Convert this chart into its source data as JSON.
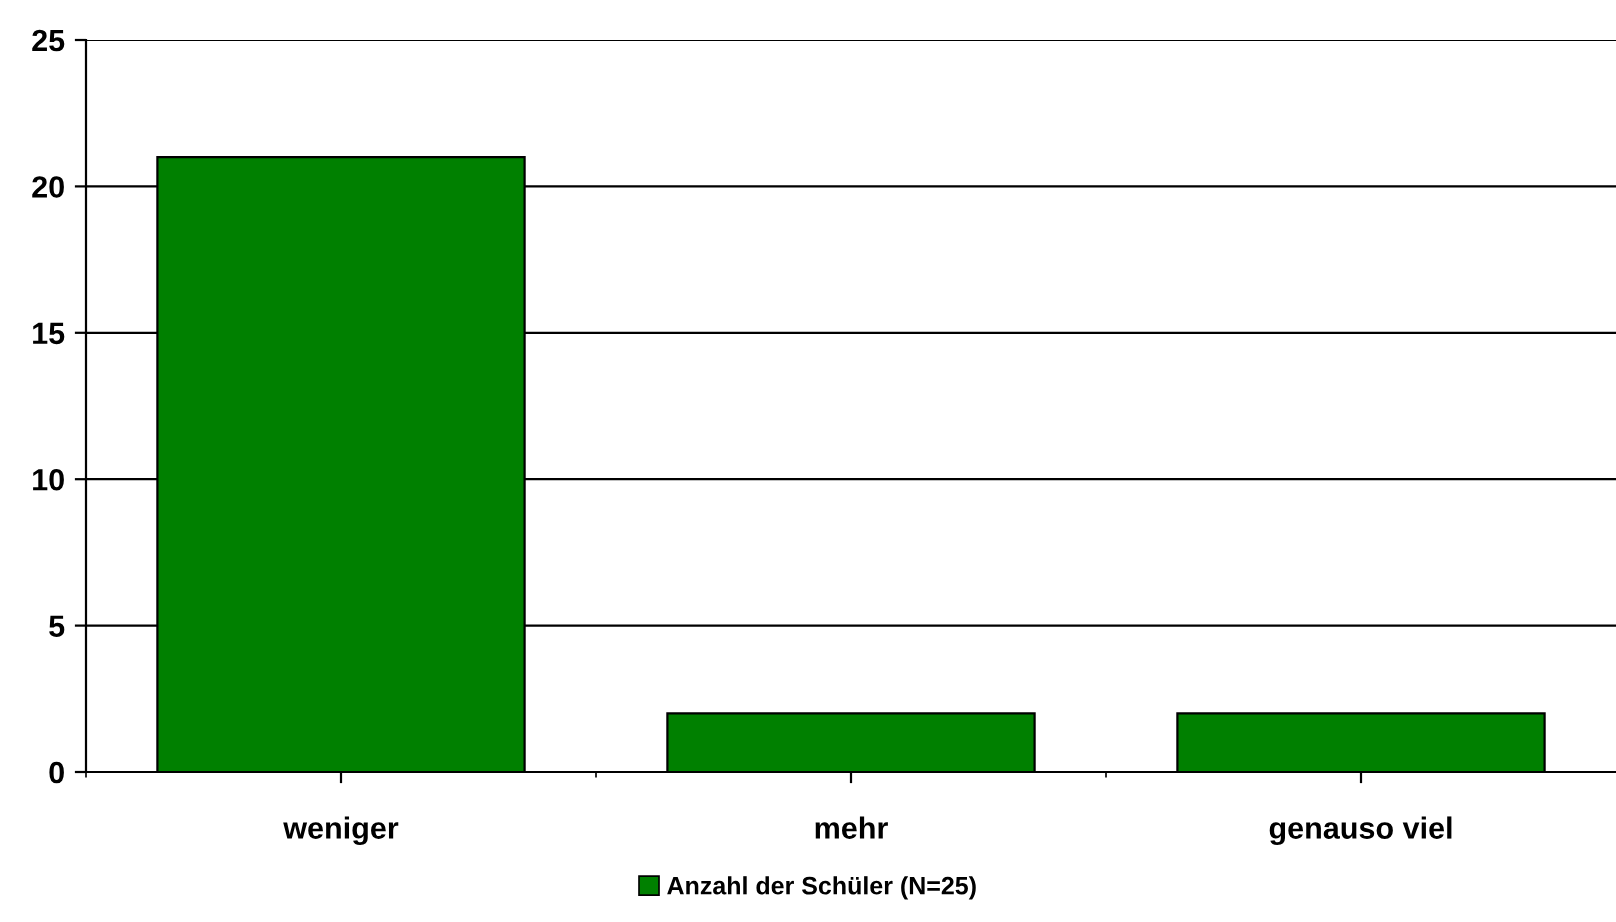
{
  "chart_data": {
    "type": "bar",
    "categories": [
      "weniger",
      "mehr",
      "genauso viel"
    ],
    "series": [
      {
        "name": "Anzahl der Schüler (N=25)",
        "color": "#008000",
        "values": [
          21,
          2,
          2
        ]
      }
    ],
    "ylim": [
      0,
      25
    ],
    "yticks": [
      0,
      5,
      10,
      15,
      20,
      25
    ],
    "grid": "y",
    "legend": "bottom"
  }
}
